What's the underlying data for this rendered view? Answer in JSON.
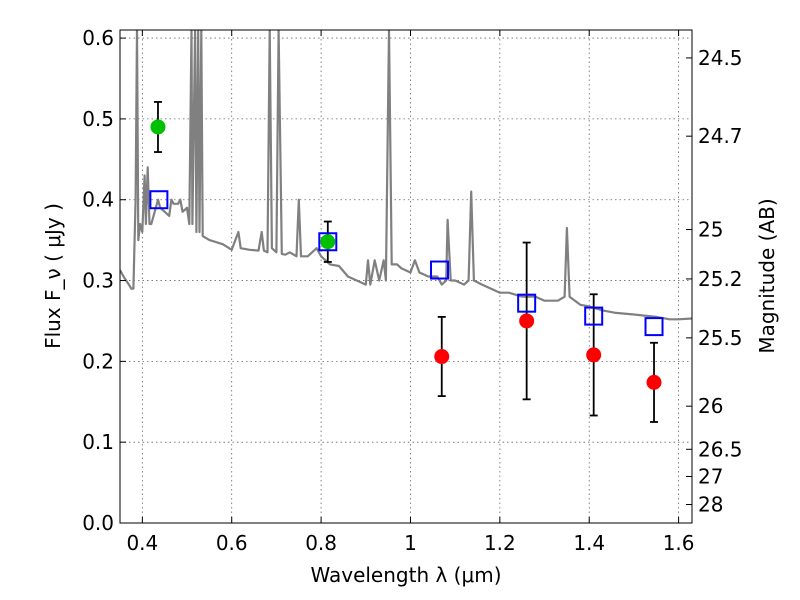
{
  "chart_data": {
    "type": "scatter",
    "xlabel": "Wavelength  λ (μm)",
    "ylabel": "Flux  F_ν  ( μJy )",
    "ylabel_right": "Magnitude (AB)",
    "xlim": [
      0.35,
      1.63
    ],
    "ylim": [
      0.0,
      0.61
    ],
    "grid": true,
    "x_ticks": [
      {
        "value": 0.4,
        "label": "0.4"
      },
      {
        "value": 0.6,
        "label": "0.6"
      },
      {
        "value": 0.8,
        "label": "0.8"
      },
      {
        "value": 1.0,
        "label": "1"
      },
      {
        "value": 1.2,
        "label": "1.2"
      },
      {
        "value": 1.4,
        "label": "1.4"
      },
      {
        "value": 1.6,
        "label": "1.6"
      }
    ],
    "y_ticks": [
      {
        "value": 0.0,
        "label": "0.0"
      },
      {
        "value": 0.1,
        "label": "0.1"
      },
      {
        "value": 0.2,
        "label": "0.2"
      },
      {
        "value": 0.3,
        "label": "0.3"
      },
      {
        "value": 0.4,
        "label": "0.4"
      },
      {
        "value": 0.5,
        "label": "0.5"
      },
      {
        "value": 0.6,
        "label": "0.6"
      }
    ],
    "right_ticks": [
      {
        "value": 24.5,
        "label": "24.5"
      },
      {
        "value": 24.7,
        "label": "24.7"
      },
      {
        "value": 25.0,
        "label": "25"
      },
      {
        "value": 25.2,
        "label": "25.2"
      },
      {
        "value": 25.5,
        "label": "25.5"
      },
      {
        "value": 26.0,
        "label": "26"
      },
      {
        "value": 26.5,
        "label": "26.5"
      },
      {
        "value": 27.0,
        "label": "27"
      },
      {
        "value": 28.0,
        "label": "28"
      }
    ],
    "series": [
      {
        "kind": "line",
        "color": "#808080",
        "points": [
          [
            0.35,
            0.313
          ],
          [
            0.36,
            0.303
          ],
          [
            0.37,
            0.295
          ],
          [
            0.375,
            0.29
          ],
          [
            0.38,
            0.29
          ],
          [
            0.385,
            0.4
          ],
          [
            0.388,
            0.61
          ],
          [
            0.391,
            0.35
          ],
          [
            0.395,
            0.37
          ],
          [
            0.4,
            0.36
          ],
          [
            0.405,
            0.43
          ],
          [
            0.408,
            0.37
          ],
          [
            0.412,
            0.44
          ],
          [
            0.416,
            0.37
          ],
          [
            0.42,
            0.37
          ],
          [
            0.43,
            0.39
          ],
          [
            0.435,
            0.4
          ],
          [
            0.44,
            0.39
          ],
          [
            0.45,
            0.385
          ],
          [
            0.46,
            0.38
          ],
          [
            0.465,
            0.4
          ],
          [
            0.47,
            0.395
          ],
          [
            0.48,
            0.395
          ],
          [
            0.485,
            0.4
          ],
          [
            0.49,
            0.385
          ],
          [
            0.5,
            0.39
          ],
          [
            0.505,
            0.37
          ],
          [
            0.51,
            0.61
          ],
          [
            0.512,
            0.37
          ],
          [
            0.518,
            0.61
          ],
          [
            0.521,
            0.36
          ],
          [
            0.525,
            0.61
          ],
          [
            0.528,
            0.36
          ],
          [
            0.532,
            0.61
          ],
          [
            0.535,
            0.355
          ],
          [
            0.55,
            0.35
          ],
          [
            0.58,
            0.345
          ],
          [
            0.6,
            0.338
          ],
          [
            0.615,
            0.36
          ],
          [
            0.62,
            0.34
          ],
          [
            0.64,
            0.338
          ],
          [
            0.66,
            0.337
          ],
          [
            0.667,
            0.36
          ],
          [
            0.672,
            0.337
          ],
          [
            0.68,
            0.335
          ],
          [
            0.685,
            0.61
          ],
          [
            0.69,
            0.34
          ],
          [
            0.7,
            0.335
          ],
          [
            0.705,
            0.61
          ],
          [
            0.712,
            0.333
          ],
          [
            0.72,
            0.332
          ],
          [
            0.73,
            0.335
          ],
          [
            0.745,
            0.33
          ],
          [
            0.75,
            0.4
          ],
          [
            0.755,
            0.33
          ],
          [
            0.77,
            0.33
          ],
          [
            0.79,
            0.34
          ],
          [
            0.8,
            0.33
          ],
          [
            0.82,
            0.32
          ],
          [
            0.84,
            0.318
          ],
          [
            0.86,
            0.305
          ],
          [
            0.88,
            0.3
          ],
          [
            0.9,
            0.295
          ],
          [
            0.905,
            0.325
          ],
          [
            0.91,
            0.295
          ],
          [
            0.92,
            0.325
          ],
          [
            0.93,
            0.3
          ],
          [
            0.94,
            0.325
          ],
          [
            0.945,
            0.3
          ],
          [
            0.952,
            0.61
          ],
          [
            0.958,
            0.32
          ],
          [
            0.97,
            0.32
          ],
          [
            0.98,
            0.315
          ],
          [
            1.0,
            0.31
          ],
          [
            1.01,
            0.325
          ],
          [
            1.02,
            0.31
          ],
          [
            1.04,
            0.305
          ],
          [
            1.06,
            0.305
          ],
          [
            1.07,
            0.295
          ],
          [
            1.08,
            0.3
          ],
          [
            1.083,
            0.375
          ],
          [
            1.09,
            0.3
          ],
          [
            1.1,
            0.3
          ],
          [
            1.12,
            0.295
          ],
          [
            1.13,
            0.3
          ],
          [
            1.136,
            0.41
          ],
          [
            1.142,
            0.3
          ],
          [
            1.16,
            0.295
          ],
          [
            1.18,
            0.29
          ],
          [
            1.2,
            0.285
          ],
          [
            1.22,
            0.285
          ],
          [
            1.25,
            0.28
          ],
          [
            1.28,
            0.28
          ],
          [
            1.3,
            0.275
          ],
          [
            1.33,
            0.275
          ],
          [
            1.345,
            0.28
          ],
          [
            1.35,
            0.365
          ],
          [
            1.356,
            0.28
          ],
          [
            1.38,
            0.27
          ],
          [
            1.4,
            0.268
          ],
          [
            1.43,
            0.263
          ],
          [
            1.46,
            0.26
          ],
          [
            1.5,
            0.258
          ],
          [
            1.55,
            0.255
          ],
          [
            1.58,
            0.252
          ],
          [
            1.6,
            0.252
          ],
          [
            1.63,
            0.253
          ]
        ]
      },
      {
        "kind": "errorbar",
        "marker": "circle",
        "color": "#00c000",
        "points": [
          {
            "x": 0.435,
            "y": 0.49,
            "err": 0.031
          },
          {
            "x": 0.815,
            "y": 0.348,
            "err": 0.025
          }
        ]
      },
      {
        "kind": "errorbar",
        "marker": "circle",
        "color": "#ff0000",
        "points": [
          {
            "x": 1.07,
            "y": 0.206,
            "err": 0.049
          },
          {
            "x": 1.26,
            "y": 0.25,
            "err": 0.097
          },
          {
            "x": 1.41,
            "y": 0.208,
            "err": 0.075
          },
          {
            "x": 1.545,
            "y": 0.174,
            "err": 0.049
          }
        ]
      },
      {
        "kind": "markers",
        "marker": "square",
        "color": "#0000ff",
        "points": [
          {
            "x": 0.437,
            "y": 0.4
          },
          {
            "x": 0.815,
            "y": 0.348
          },
          {
            "x": 1.065,
            "y": 0.313
          },
          {
            "x": 1.26,
            "y": 0.272
          },
          {
            "x": 1.41,
            "y": 0.256
          },
          {
            "x": 1.545,
            "y": 0.243
          }
        ]
      }
    ]
  }
}
